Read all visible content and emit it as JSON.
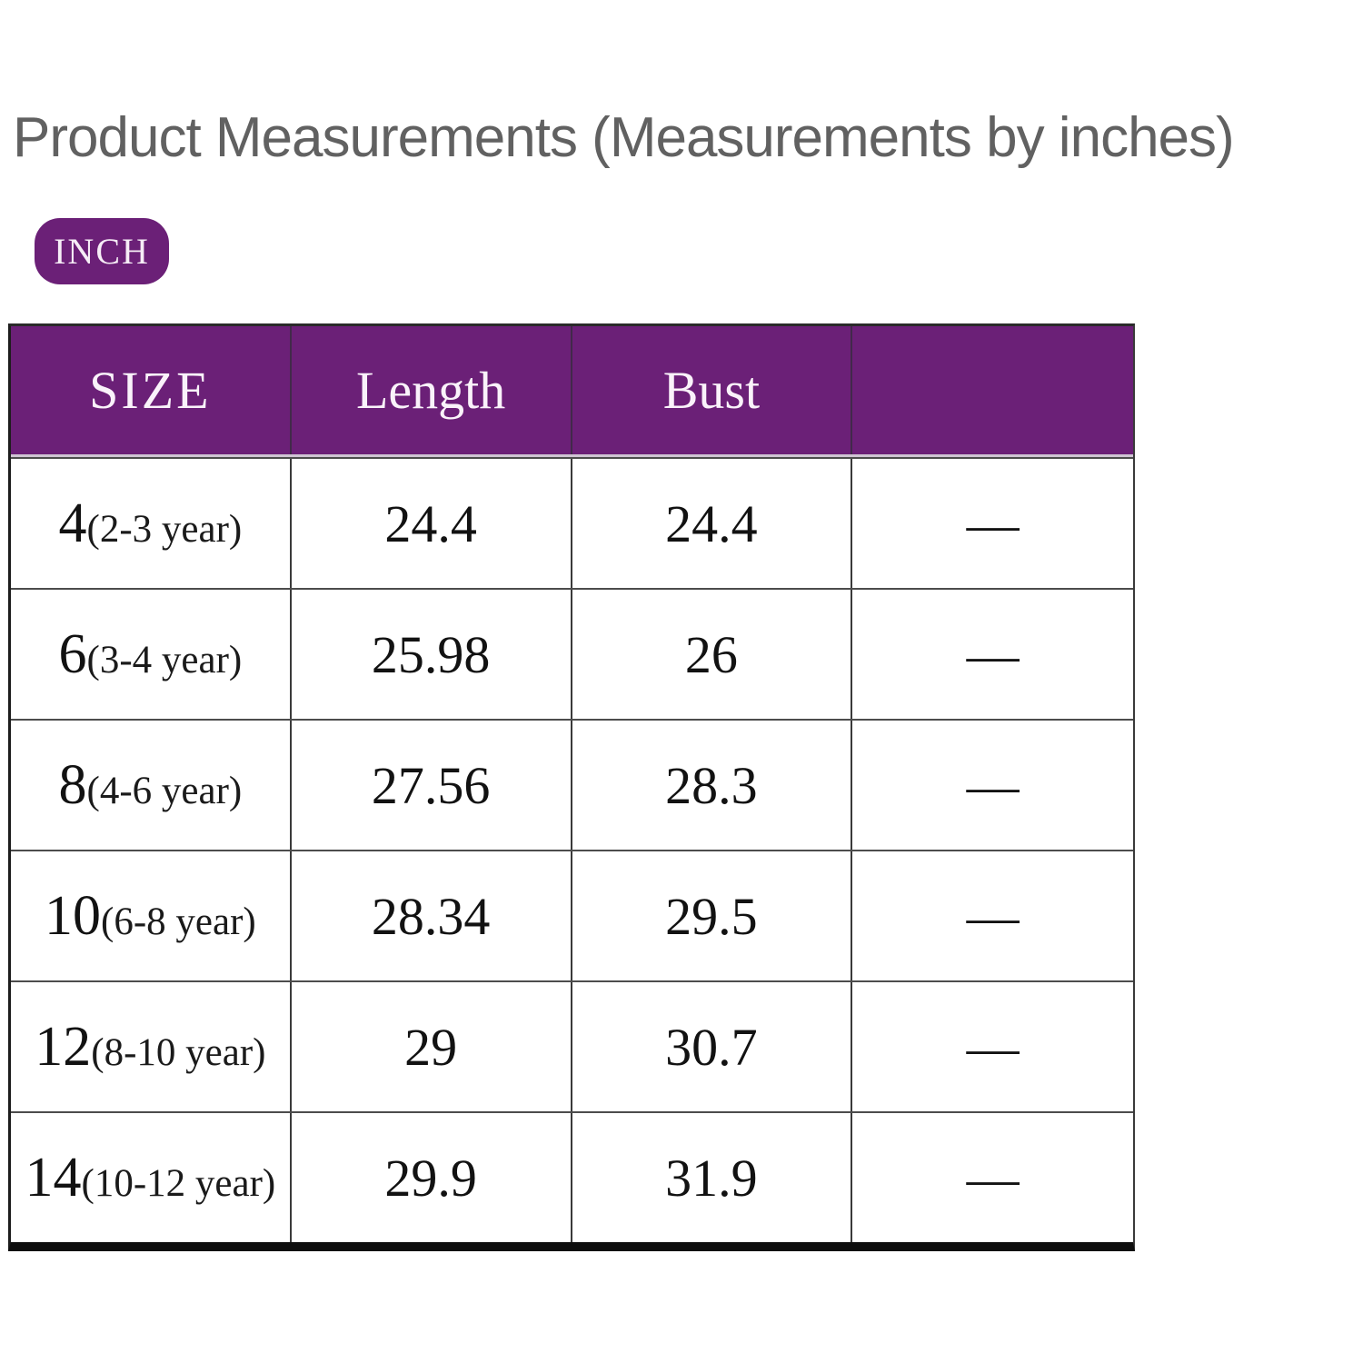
{
  "header": {
    "title": "Product Measurements (Measurements by inches)",
    "unit_badge": "INCH"
  },
  "colors": {
    "accent_purple": "#6B2077",
    "title_gray": "#616161",
    "border_dark": "#1d1d1d",
    "row_divider": "#4c4c4c",
    "header_bottom_divider": "#cfc5d3"
  },
  "table": {
    "columns": [
      "SIZE",
      "Length",
      "Bust",
      ""
    ],
    "rows": [
      {
        "size": "4",
        "note": "(2-3 year)",
        "length": "24.4",
        "bust": "24.4",
        "extra": "—"
      },
      {
        "size": "6",
        "note": "(3-4 year)",
        "length": "25.98",
        "bust": "26",
        "extra": "—"
      },
      {
        "size": "8",
        "note": "(4-6 year)",
        "length": "27.56",
        "bust": "28.3",
        "extra": "—"
      },
      {
        "size": "10",
        "note": "(6-8 year)",
        "length": "28.34",
        "bust": "29.5",
        "extra": "—"
      },
      {
        "size": "12",
        "note": "(8-10 year)",
        "length": "29",
        "bust": "30.7",
        "extra": "—"
      },
      {
        "size": "14",
        "note": "(10-12 year)",
        "length": "29.9",
        "bust": "31.9",
        "extra": "—"
      }
    ]
  },
  "chart_data": {
    "type": "table",
    "title": "Product Measurements (Measurements by inches)",
    "unit": "inches",
    "unit_toggle_label": "INCH",
    "columns": [
      "SIZE",
      "Length",
      "Bust",
      ""
    ],
    "rows": [
      [
        "4(2-3 year)",
        24.4,
        24.4,
        "—"
      ],
      [
        "6(3-4 year)",
        25.98,
        26,
        "—"
      ],
      [
        "8(4-6 year)",
        27.56,
        28.3,
        "—"
      ],
      [
        "10(6-8 year)",
        28.34,
        29.5,
        "—"
      ],
      [
        "12(8-10 year)",
        29,
        30.7,
        "—"
      ],
      [
        "14(10-12 year)",
        29.9,
        31.9,
        "—"
      ]
    ]
  }
}
